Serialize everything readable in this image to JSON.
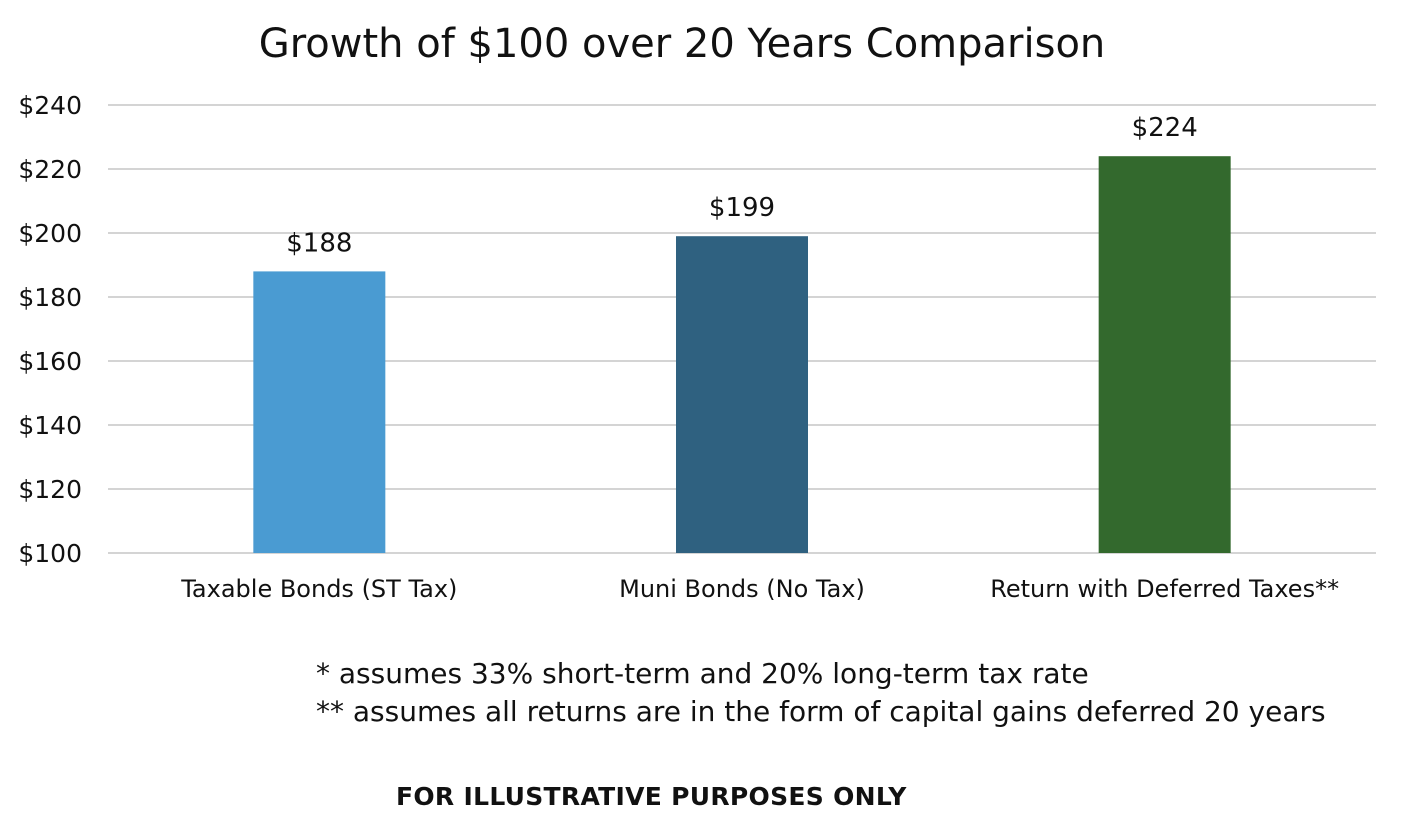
{
  "chart_data": {
    "type": "bar",
    "title": "Growth of $100 over 20 Years Comparison",
    "xlabel": "",
    "ylabel": "",
    "categories": [
      "Taxable Bonds (ST Tax)",
      "Muni Bonds (No Tax)",
      "Return with Deferred Taxes**"
    ],
    "values": [
      188,
      199,
      224
    ],
    "data_labels": [
      "$188",
      "$199",
      "$224"
    ],
    "colors": [
      "#4a9bd2",
      "#2f6180",
      "#33692d"
    ],
    "ylim": [
      100,
      240
    ],
    "yticks": [
      100,
      120,
      140,
      160,
      180,
      200,
      220,
      240
    ],
    "ytick_labels": [
      "$100",
      "$120",
      "$140",
      "$160",
      "$180",
      "$200",
      "$220",
      "$240"
    ],
    "grid": true,
    "legend": "none"
  },
  "footnotes": [
    "* assumes 33% short-term and 20% long-term tax rate",
    "** assumes all returns are in the form of capital gains deferred 20 years"
  ],
  "disclaimer": "FOR ILLUSTRATIVE PURPOSES ONLY"
}
